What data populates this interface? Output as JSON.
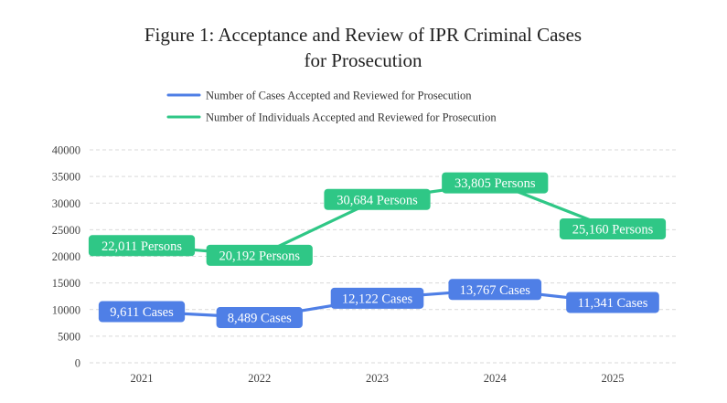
{
  "chart_data": {
    "type": "line",
    "title": [
      "Figure 1: Acceptance and Review of IPR Criminal Cases",
      "for Prosecution"
    ],
    "categories": [
      "2021",
      "2022",
      "2023",
      "2024",
      "2025"
    ],
    "ylim": [
      0,
      40000
    ],
    "yticks": [
      0,
      5000,
      10000,
      15000,
      20000,
      25000,
      30000,
      35000,
      40000
    ],
    "grid": true,
    "legend_position": "top",
    "series": [
      {
        "name": "Number of Cases Accepted and Reviewed for Prosecution",
        "color": "#4f7fe6",
        "values": [
          9611,
          8489,
          12122,
          13767,
          11341
        ],
        "labels": [
          "9,611 Cases",
          "8,489 Cases",
          "12,122 Cases",
          "13,767 Cases",
          "11,341 Cases"
        ]
      },
      {
        "name": "Number of Individuals Accepted and Reviewed for Prosecution",
        "color": "#2fc786",
        "values": [
          22011,
          20192,
          30684,
          33805,
          25160
        ],
        "labels": [
          "22,011 Persons",
          "20,192 Persons",
          "30,684 Persons",
          "33,805 Persons",
          "25,160 Persons"
        ]
      }
    ]
  }
}
